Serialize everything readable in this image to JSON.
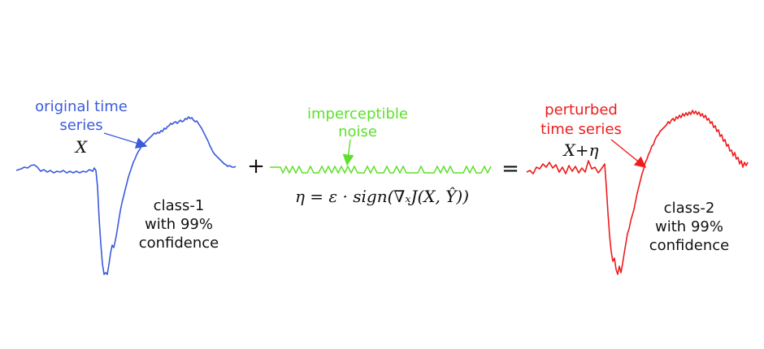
{
  "colors": {
    "original": "#3b5bdb",
    "noise": "#5ee02a",
    "perturbed": "#ee1c1c",
    "text": "#111111"
  },
  "original": {
    "label_line1": "original time",
    "label_line2": "series",
    "symbol": "X",
    "class_line1": "class-1",
    "class_line2": "with 99%",
    "class_line3": "confidence"
  },
  "noise": {
    "label_line1": "imperceptible",
    "label_line2": "noise",
    "formula": "η = ε · sign(∇ₓJ(X, Ŷ))"
  },
  "perturbed": {
    "label_line1": "perturbed",
    "label_line2": "time series",
    "symbol": "X+η",
    "class_line1": "class-2",
    "class_line2": "with 99%",
    "class_line3": "confidence"
  },
  "operators": {
    "plus": "+",
    "equals": "="
  }
}
